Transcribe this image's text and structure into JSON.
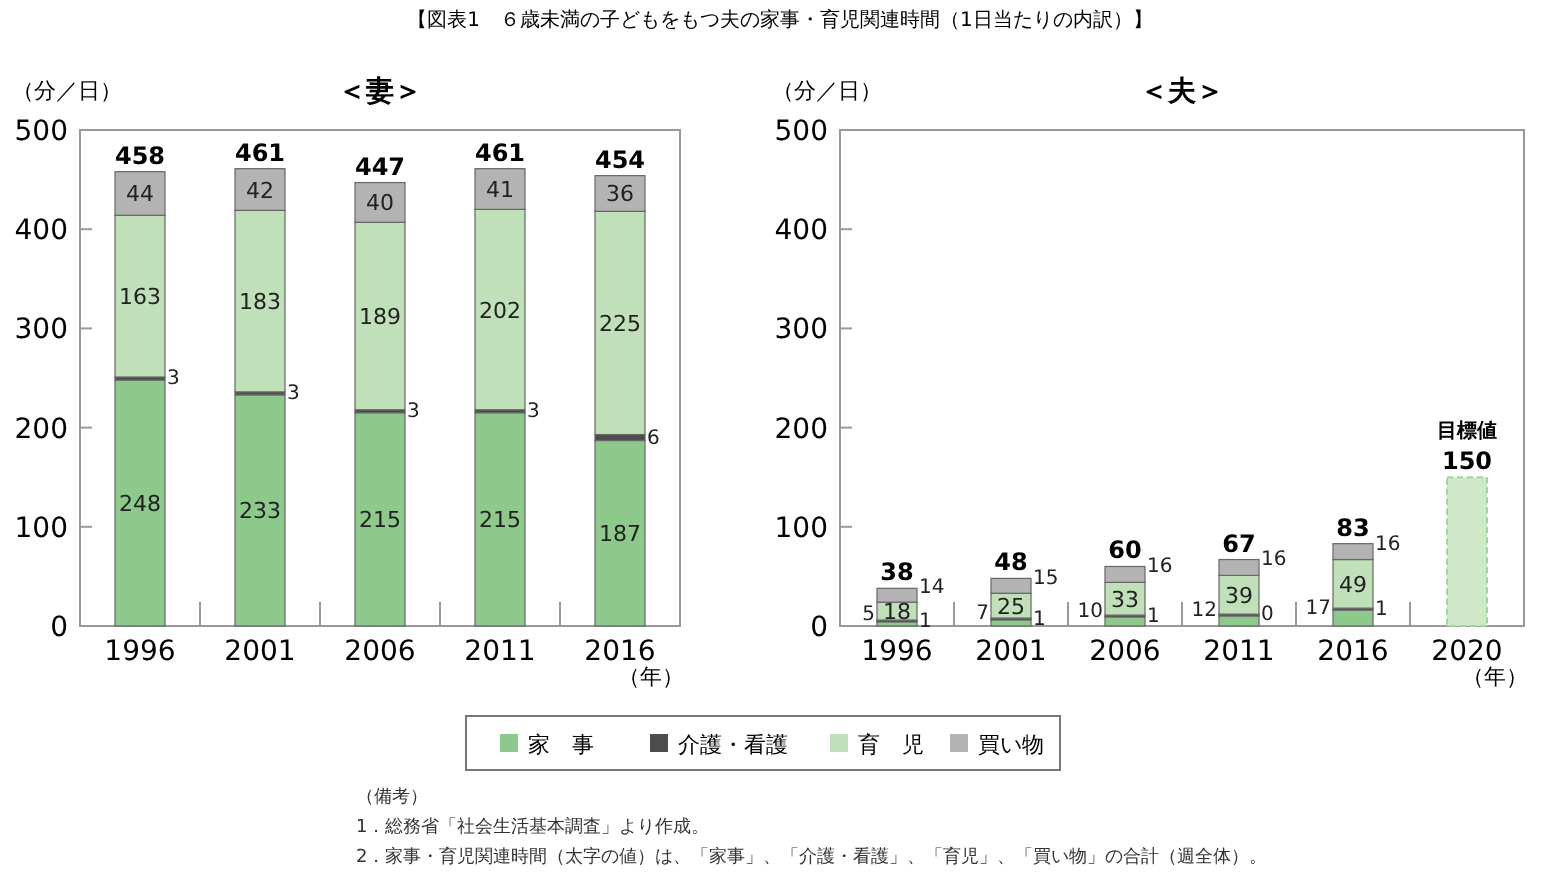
{
  "chart_data": [
    {
      "type": "bar",
      "title": "＜妻＞",
      "ylabel": "（分／日）",
      "xlabel": "（年）",
      "categories": [
        "1996",
        "2001",
        "2006",
        "2011",
        "2016"
      ],
      "stacked": true,
      "data_labels": true,
      "legend": "bottom",
      "grid": false,
      "ylim": [
        0,
        500
      ],
      "yticks": [
        0,
        100,
        200,
        300,
        400,
        500
      ],
      "series": [
        {
          "name": "家　事",
          "color": "#8cc98a",
          "values": [
            248,
            233,
            215,
            215,
            187
          ]
        },
        {
          "name": "介護・看護",
          "color": "#4d4d4d",
          "values": [
            3,
            3,
            3,
            3,
            6
          ]
        },
        {
          "name": "育　児",
          "color": "#bfe0b8",
          "values": [
            163,
            183,
            189,
            202,
            225
          ]
        },
        {
          "name": "買い物",
          "color": "#b3b3b3",
          "values": [
            44,
            42,
            40,
            41,
            36
          ]
        }
      ],
      "totals": [
        "458",
        "461",
        "447",
        "461",
        "454"
      ],
      "annotations": [
        "【図表1　６歳未満の子どもをもつ夫の家事・育児関連時間（1日当たりの内訳）】",
        "（備考）",
        "1．総務省「社会生活基本調査」より作成。",
        "2．家事・育児関連時間（太字の値）は、「家事」、「介護・看護」、「育児」、「買い物」の合計（週全体）。"
      ]
    },
    {
      "type": "bar",
      "title": "＜夫＞",
      "ylabel": "（分／日）",
      "xlabel": "（年）",
      "categories": [
        "1996",
        "2001",
        "2006",
        "2011",
        "2016",
        "2020"
      ],
      "stacked": true,
      "data_labels": true,
      "legend": "bottom",
      "grid": false,
      "ylim": [
        0,
        500
      ],
      "yticks": [
        0,
        100,
        200,
        300,
        400,
        500
      ],
      "series": [
        {
          "name": "家　事",
          "color": "#8cc98a",
          "values": [
            5,
            7,
            10,
            12,
            17,
            null
          ]
        },
        {
          "name": "介護・看護",
          "color": "#4d4d4d",
          "values": [
            1,
            1,
            1,
            0,
            1,
            null
          ]
        },
        {
          "name": "育　児",
          "color": "#bfe0b8",
          "values": [
            18,
            25,
            33,
            39,
            49,
            null
          ]
        },
        {
          "name": "買い物",
          "color": "#b3b3b3",
          "values": [
            14,
            15,
            16,
            16,
            16,
            null
          ]
        },
        {
          "color": "#cfe8c8",
          "line_style": "dashed",
          "values": [
            null,
            null,
            null,
            null,
            null,
            150
          ]
        }
      ],
      "totals": [
        "38",
        "48",
        "60",
        "67",
        "83",
        null
      ],
      "annotations": [
        {
          "text": "目標値",
          "x": "2020",
          "y": 150
        }
      ]
    }
  ]
}
